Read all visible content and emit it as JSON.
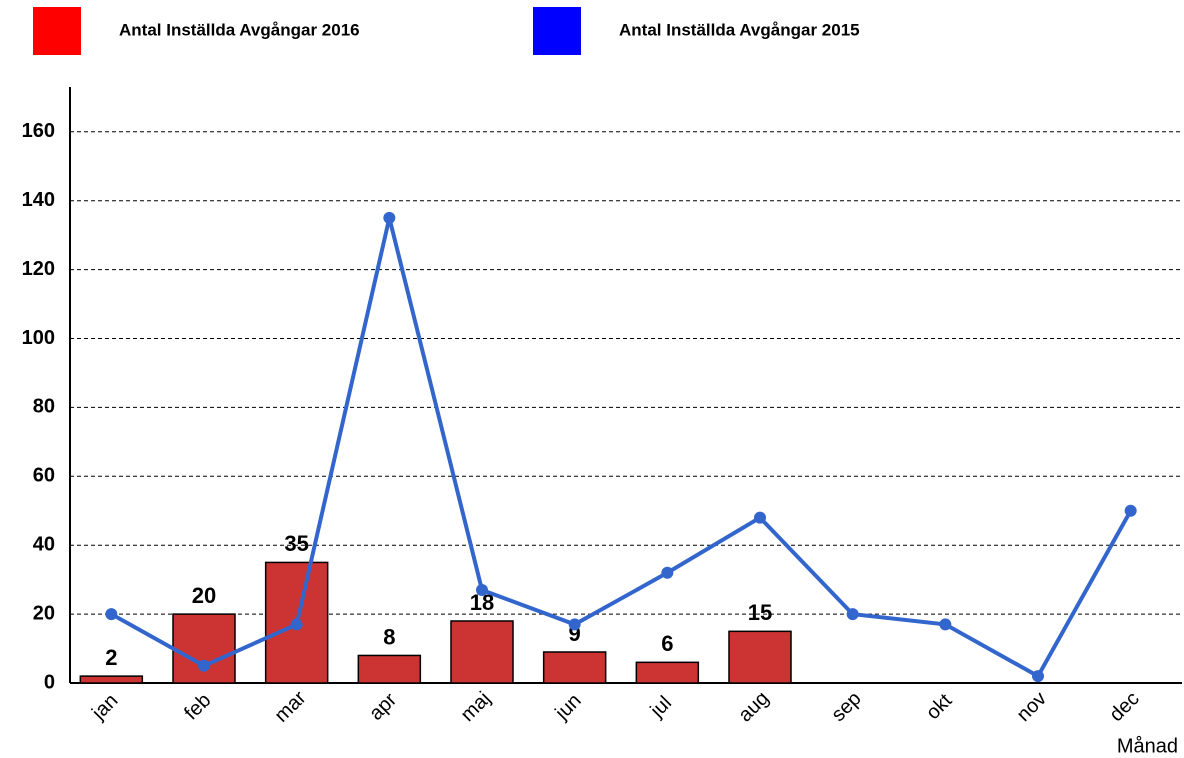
{
  "chart_data": {
    "type": "bar-line",
    "x_label": "Månad",
    "categories": [
      "jan",
      "feb",
      "mar",
      "apr",
      "maj",
      "jun",
      "jul",
      "aug",
      "sep",
      "okt",
      "nov",
      "dec"
    ],
    "series": [
      {
        "name": "Antal Inställda Avgångar 2016",
        "type": "bar",
        "color": "#cc3333",
        "legend_color": "#ff0000",
        "values": [
          2,
          20,
          35,
          8,
          18,
          9,
          6,
          15,
          null,
          null,
          null,
          null
        ]
      },
      {
        "name": "Antal Inställda Avgångar 2015",
        "type": "line",
        "color": "#3366cc",
        "legend_color": "#0000ff",
        "values": [
          20,
          5,
          17,
          135,
          27,
          17,
          32,
          48,
          20,
          17,
          2,
          50
        ]
      }
    ],
    "ylim": [
      0,
      173
    ],
    "yticks": [
      0,
      20,
      40,
      60,
      80,
      100,
      120,
      140,
      160
    ],
    "grid": true
  }
}
